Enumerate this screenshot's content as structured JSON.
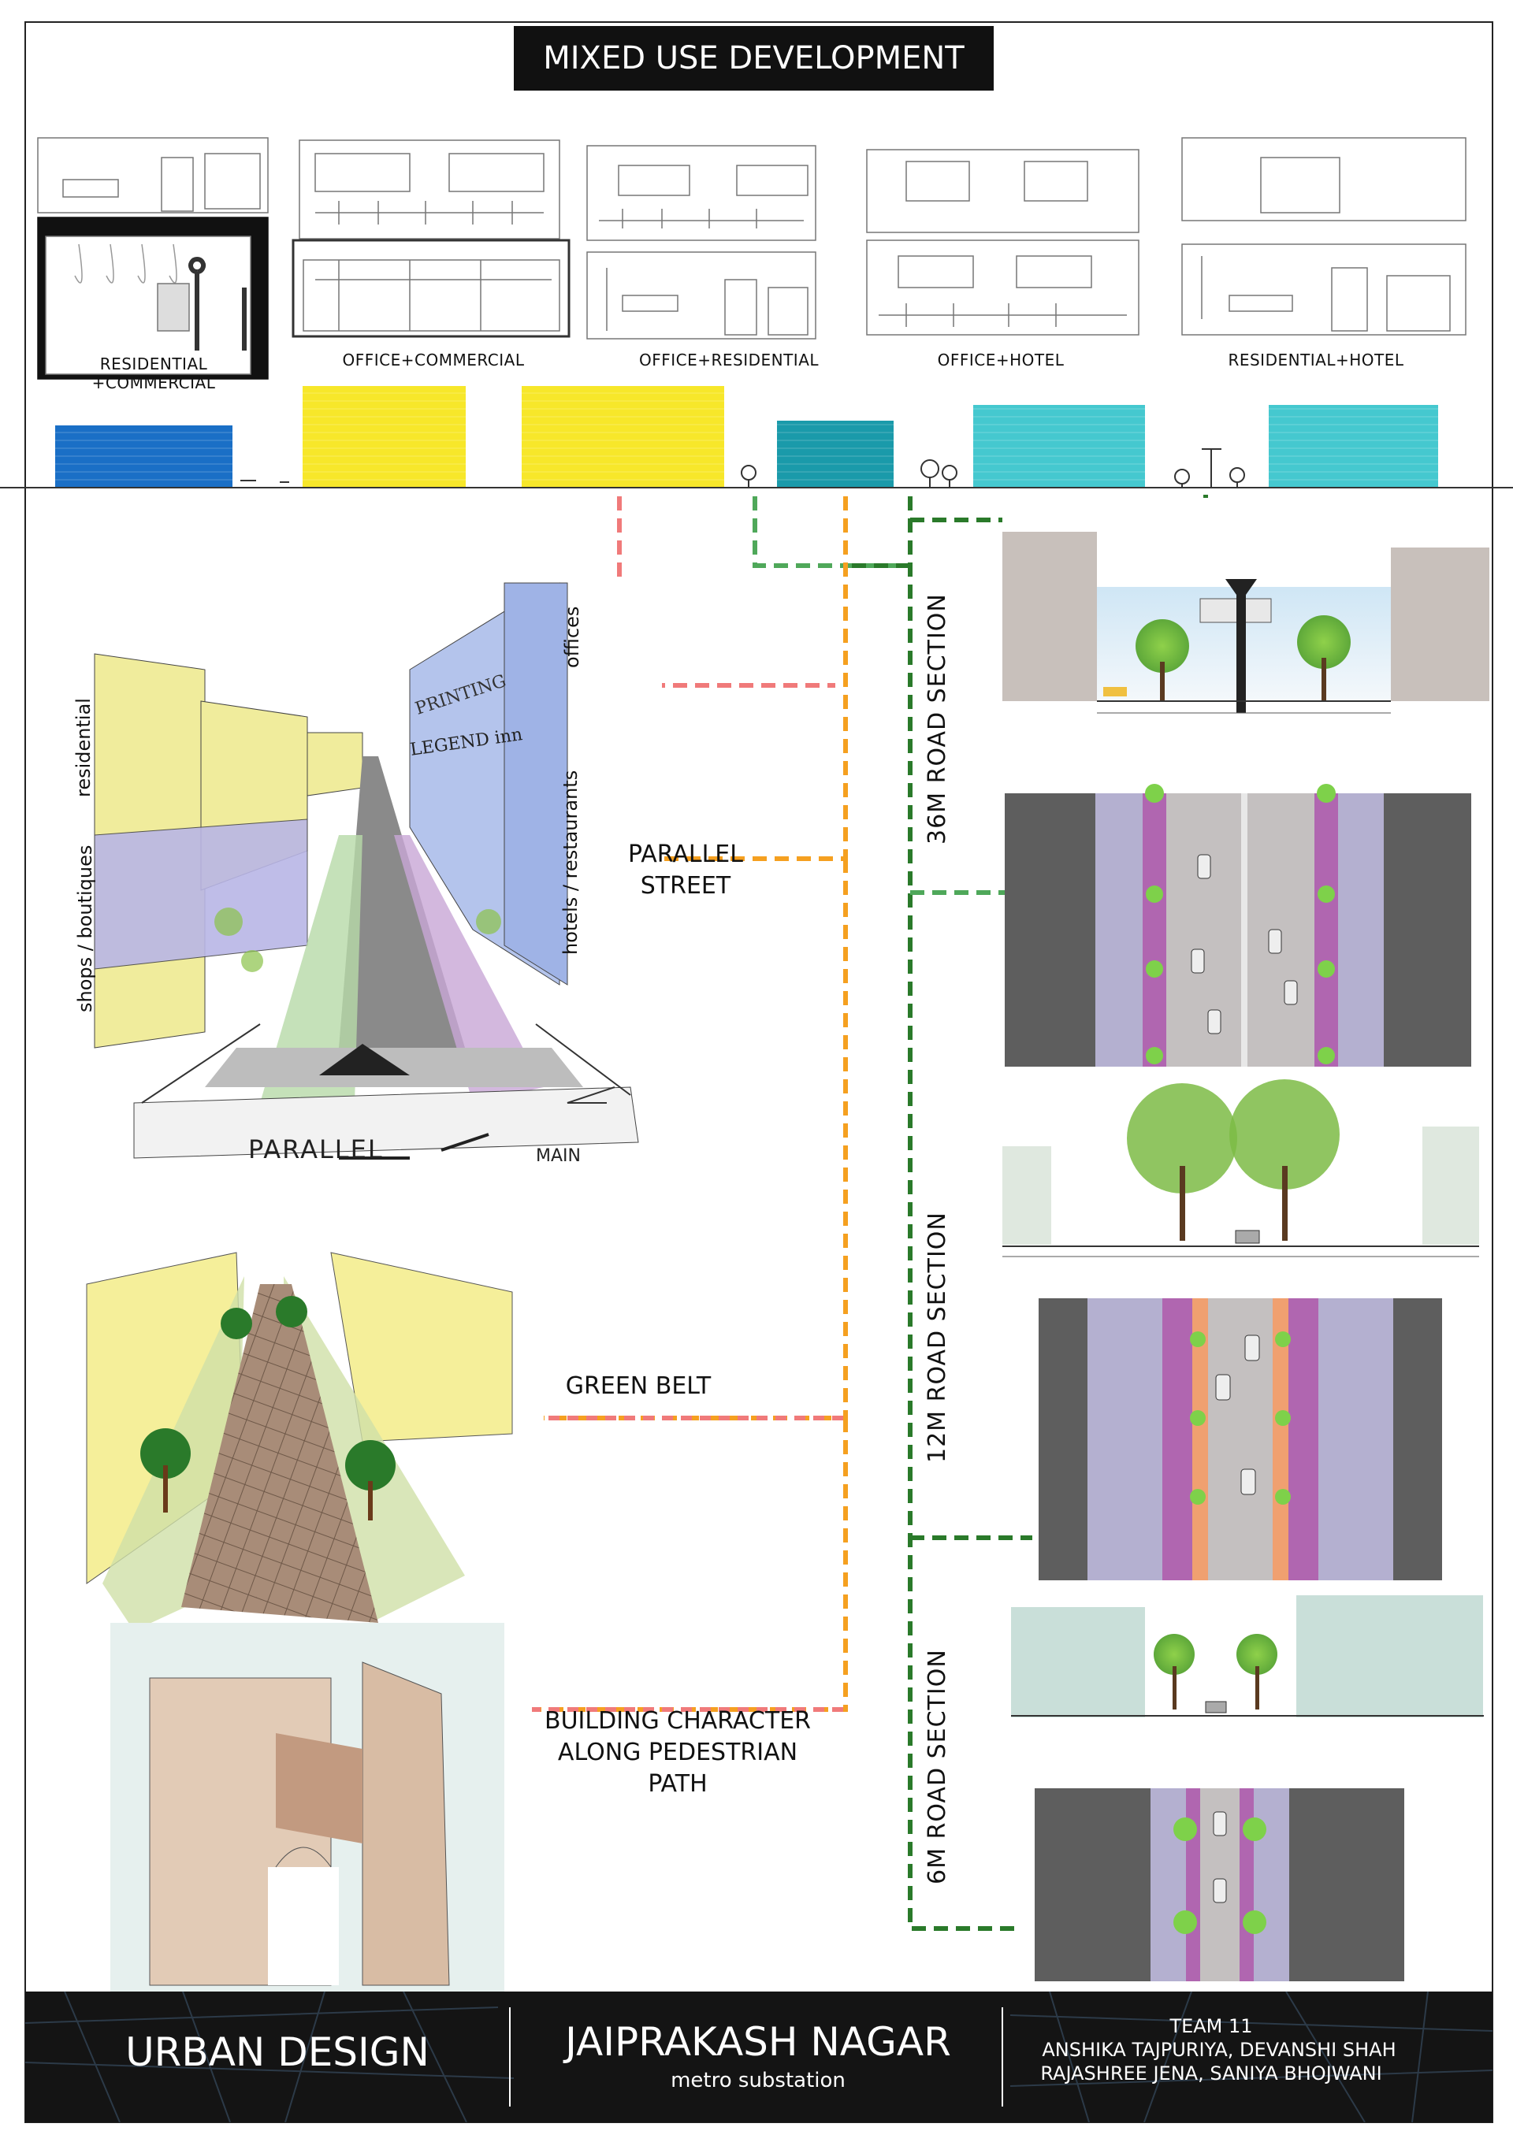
{
  "title": "MIXED USE DEVELOPMENT",
  "building_types": [
    {
      "line1": "RESIDENTIAL",
      "line2": "+COMMERCIAL"
    },
    {
      "line1": "OFFICE+COMMERCIAL",
      "line2": ""
    },
    {
      "line1": "OFFICE+RESIDENTIAL",
      "line2": ""
    },
    {
      "line1": "OFFICE+HOTEL",
      "line2": ""
    },
    {
      "line1": "RESIDENTIAL+HOTEL",
      "line2": ""
    }
  ],
  "block_colors": {
    "blue": "#1a6fc6",
    "yellow": "#f7e72a",
    "teal": "#1a9aaa",
    "cyan": "#45c8cf"
  },
  "line_colors": {
    "pink": "#f07a7a",
    "orange": "#f5a020",
    "green": "#2a7a2a",
    "light_green": "#4fa85a"
  },
  "sketch_labels": {
    "residential": "residential",
    "shops": "shops / boutiques",
    "offices": "offices",
    "hotels": "hotels / restaurants",
    "sign_printing": "PRINTING",
    "sign_legend": "LEGEND inn",
    "parallel": "PARALLEL",
    "main": "MAIN"
  },
  "feature_labels": {
    "parallel_street": [
      "PARALLEL",
      "STREET"
    ],
    "green_belt": [
      "GREEN BELT"
    ],
    "building_character": [
      "BUILDING CHARACTER",
      "ALONG PEDESTRIAN",
      "PATH"
    ]
  },
  "section_labels": {
    "road36": "36M ROAD SECTION",
    "road12": "12M ROAD SECTION",
    "road6": "6M ROAD SECTION"
  },
  "footer": {
    "left": "URBAN DESIGN",
    "center_title": "JAIPRAKASH NAGAR",
    "center_sub": "metro substation",
    "team": "TEAM 11",
    "members_1": "ANSHIKA TAJPURIYA,   DEVANSHI SHAH",
    "members_2": "RAJASHREE JENA,  SANIYA BHOJWANI"
  }
}
